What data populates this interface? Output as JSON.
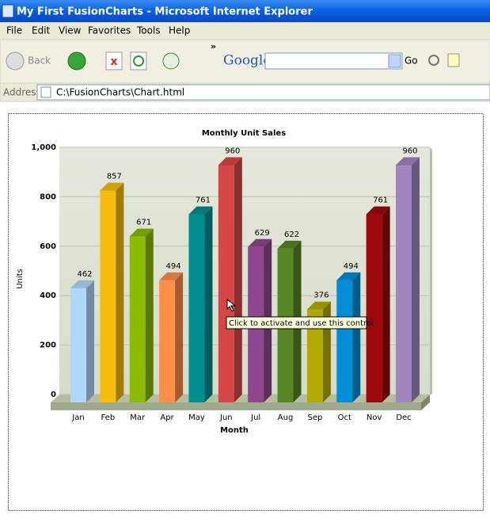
{
  "window": {
    "title": "My First FusionCharts - Microsoft Internet Explorer"
  },
  "menu": [
    "File",
    "Edit",
    "View",
    "Favorites",
    "Tools",
    "Help"
  ],
  "toolbar": {
    "back": "Back",
    "search_brand": "Google",
    "go": "Go"
  },
  "address": {
    "label": "Address",
    "url": "C:\\FusionCharts\\Chart.html"
  },
  "tooltip": "Click to activate and use this control",
  "chart_data": {
    "type": "bar3d",
    "title": "Monthly Unit Sales",
    "x_label": "Month",
    "y_label": "Units",
    "categories": [
      "Jan",
      "Feb",
      "Mar",
      "Apr",
      "May",
      "Jun",
      "Jul",
      "Aug",
      "Sep",
      "Oct",
      "Nov",
      "Dec"
    ],
    "values": [
      462,
      857,
      671,
      494,
      761,
      960,
      629,
      622,
      376,
      494,
      761,
      960
    ],
    "colors": [
      "#afd8f8",
      "#f6bd0f",
      "#8bba00",
      "#ff8e46",
      "#008e8e",
      "#d64646",
      "#8e468e",
      "#588526",
      "#b3aa00",
      "#008ed6",
      "#9d080d",
      "#a186be"
    ],
    "ylim": [
      0,
      1000
    ],
    "yticks": [
      0,
      200,
      400,
      600,
      800,
      {
        "value": 1000,
        "label": "1,000"
      }
    ],
    "grid": true
  }
}
